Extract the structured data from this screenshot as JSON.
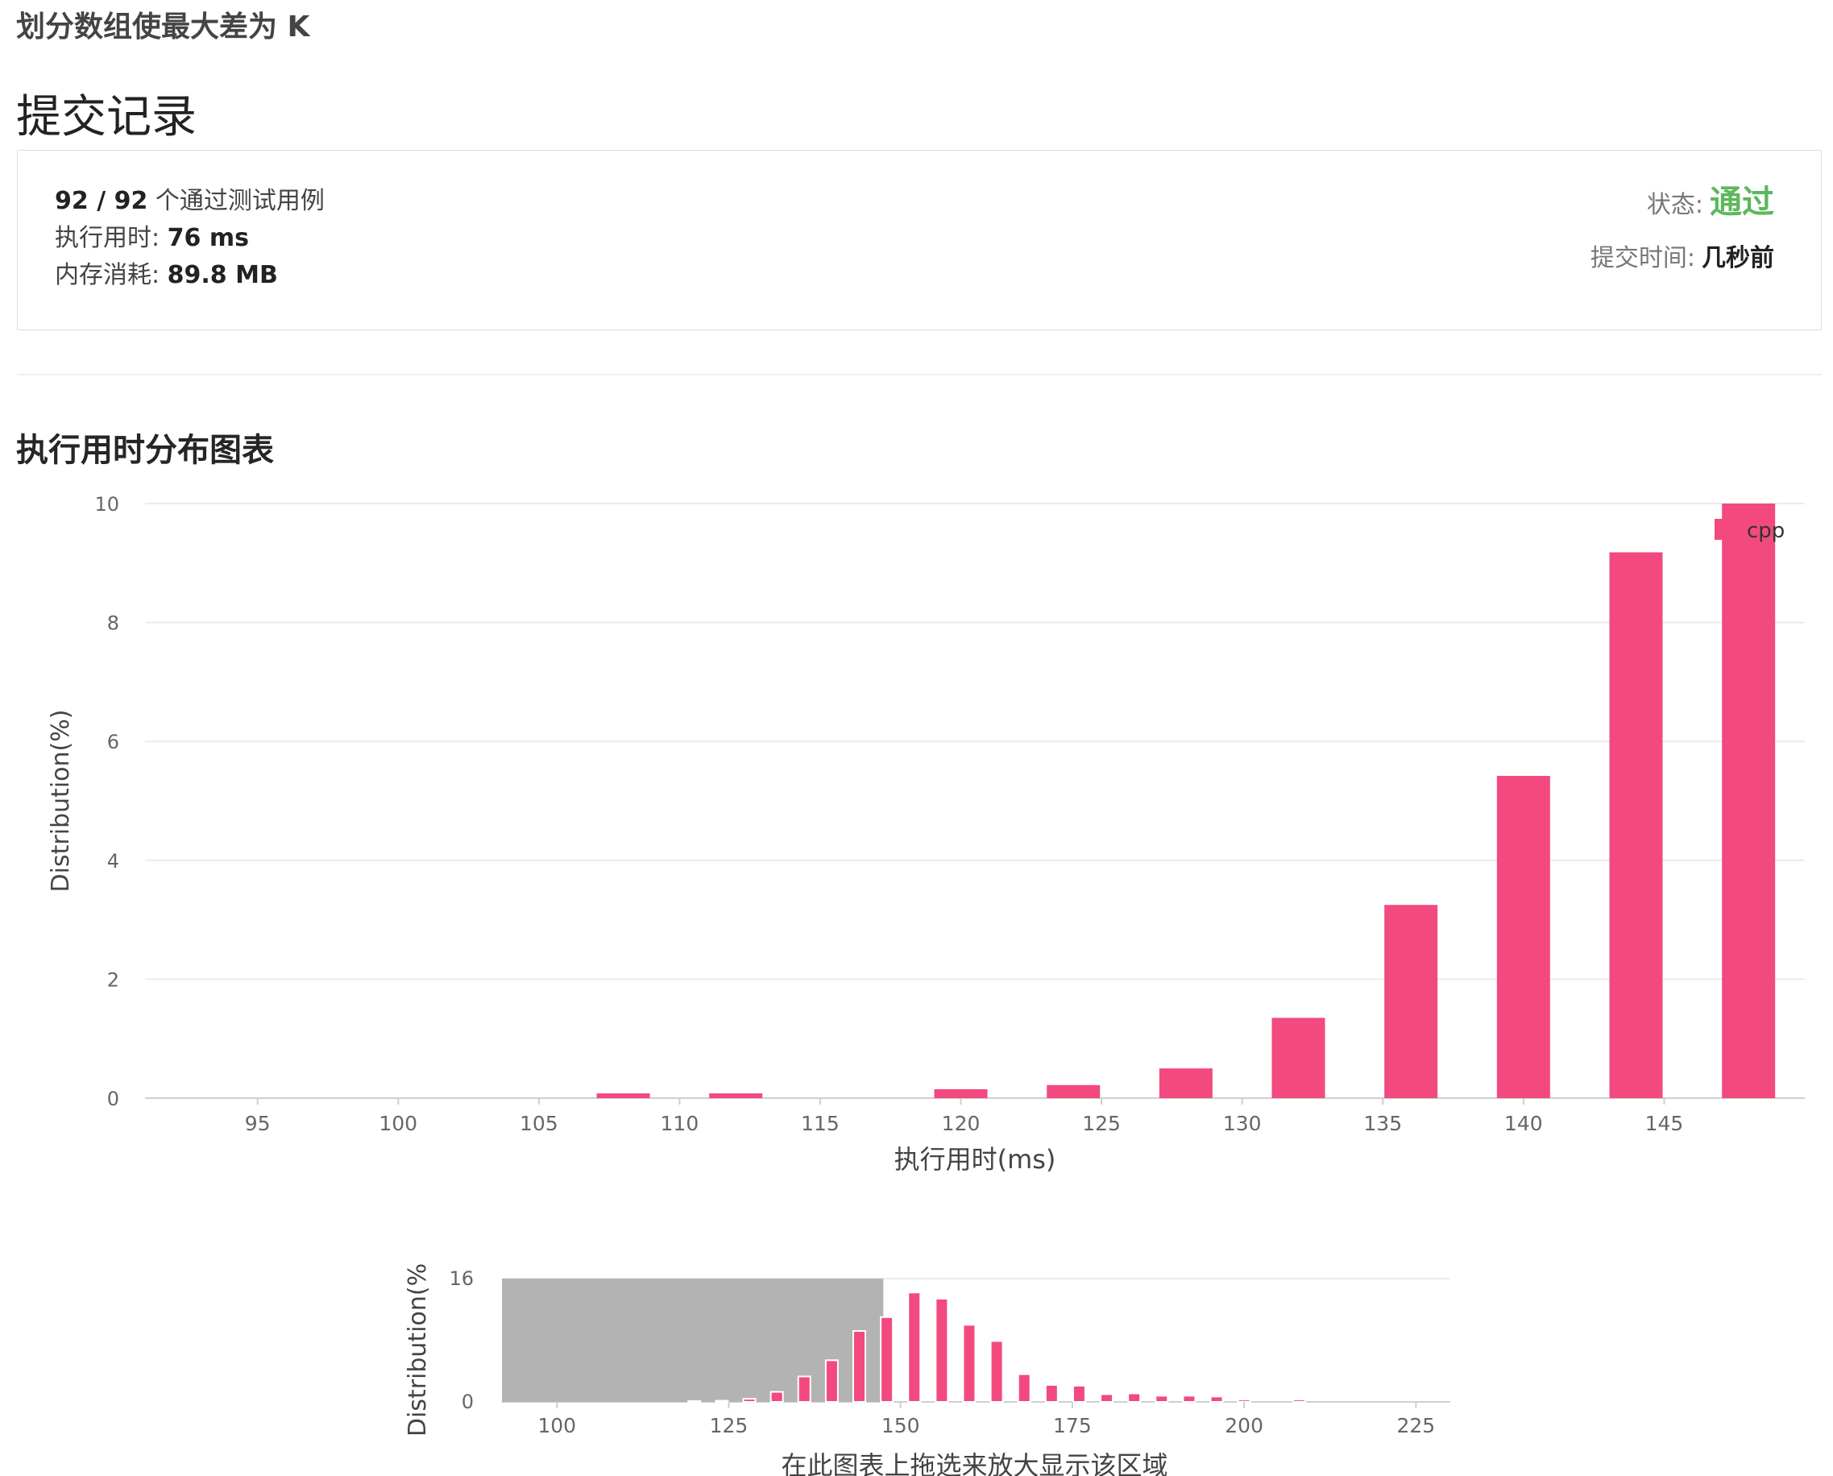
{
  "problem_title": "划分数组使最大差为 K",
  "section_heading": "提交记录",
  "result": {
    "passed_tests": "92 / 92",
    "passed_suffix": "个通过测试用例",
    "runtime_label": "执行用时:",
    "runtime_value": "76 ms",
    "memory_label": "内存消耗:",
    "memory_value": "89.8 MB",
    "status_label": "状态:",
    "status_value": "通过",
    "submit_time_label": "提交时间:",
    "submit_time_value": "几秒前"
  },
  "colors": {
    "bar": "#f24a7e",
    "status": "#5cb85c",
    "selection": "#b3b3b3"
  },
  "chart_heading": "执行用时分布图表",
  "chart_data": [
    {
      "type": "bar",
      "x": [
        108,
        112,
        120,
        124,
        128,
        132,
        136,
        140,
        144,
        148
      ],
      "values": [
        0.08,
        0.08,
        0.15,
        0.22,
        0.5,
        1.35,
        3.25,
        5.42,
        9.18,
        10.0
      ],
      "xlabel": "执行用时(ms)",
      "ylabel": "Distribution(%)",
      "xlim": [
        91,
        150
      ],
      "ylim": [
        0,
        10
      ],
      "xticks": [
        "95",
        "100",
        "105",
        "110",
        "115",
        "120",
        "125",
        "130",
        "135",
        "140",
        "145"
      ],
      "yticks": [
        "0",
        "2",
        "4",
        "6",
        "8",
        "10"
      ],
      "legend": "top-right",
      "series": [
        {
          "name": "cpp"
        }
      ]
    },
    {
      "type": "bar",
      "role": "navigator",
      "x": [
        120,
        124,
        128,
        132,
        136,
        140,
        144,
        148,
        152,
        156,
        160,
        164,
        168,
        172,
        176,
        180,
        184,
        188,
        192,
        196,
        200,
        208
      ],
      "values": [
        0.1,
        0.15,
        0.4,
        1.3,
        3.3,
        5.4,
        9.2,
        11.0,
        14.2,
        13.4,
        10.0,
        7.9,
        3.6,
        2.2,
        2.1,
        1.0,
        1.1,
        0.8,
        0.8,
        0.7,
        0.3,
        0.3
      ],
      "ylabel": "Distribution(%",
      "xlim": [
        92,
        230
      ],
      "ylim": [
        0,
        16
      ],
      "xticks": [
        "100",
        "125",
        "150",
        "175",
        "200",
        "225"
      ],
      "yticks": [
        "0",
        "16"
      ],
      "selection": [
        92,
        147.5
      ],
      "caption": "在此图表上拖选来放大显示该区域"
    }
  ]
}
